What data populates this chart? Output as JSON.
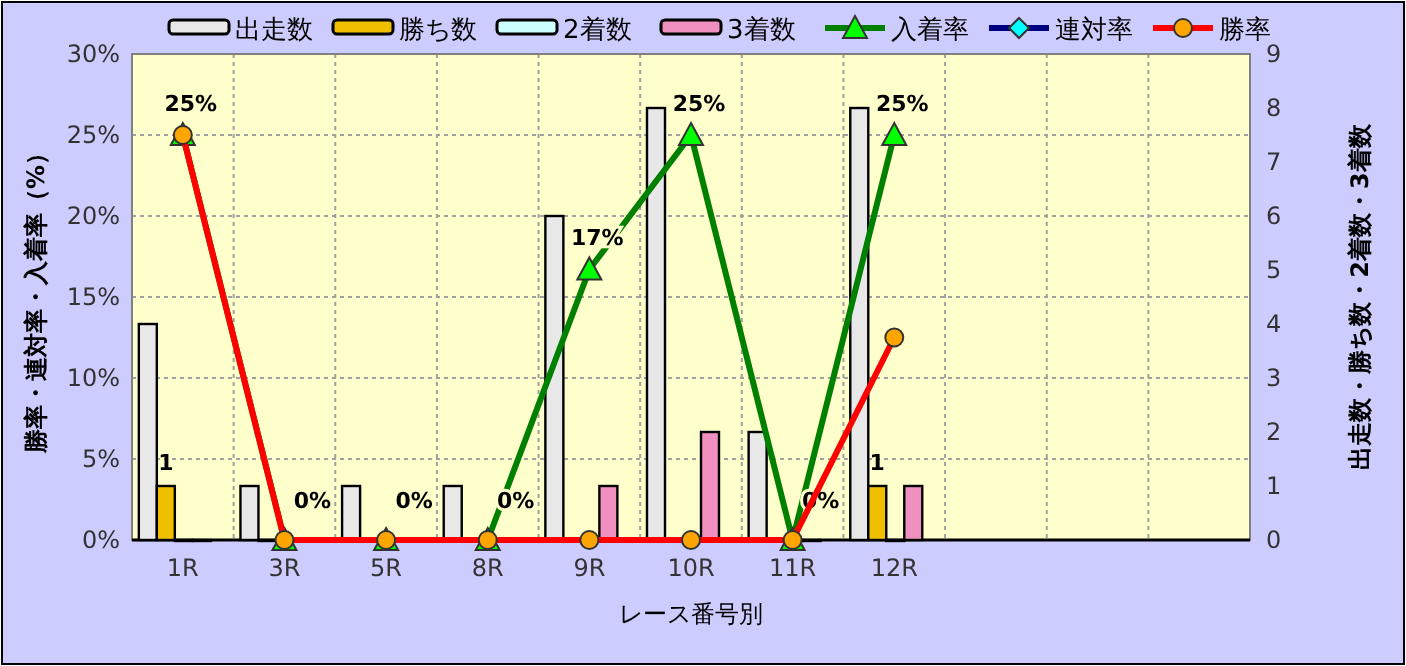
{
  "chart_data": {
    "type": "bar",
    "xlabel": "レース番号別",
    "ylabel": "勝率・連対率・入着率（%）",
    "y2label": "出走数・勝ち数・2着数・3着数",
    "categories": [
      "1R",
      "3R",
      "5R",
      "8R",
      "9R",
      "10R",
      "11R",
      "12R",
      null,
      null,
      null
    ],
    "ylim": [
      0,
      30
    ],
    "yticks": [
      {
        "value": 0,
        "label": "0%"
      },
      {
        "value": 5,
        "label": "5%"
      },
      {
        "value": 10,
        "label": "10%"
      },
      {
        "value": 15,
        "label": "15%"
      },
      {
        "value": 20,
        "label": "20%"
      },
      {
        "value": 25,
        "label": "25%"
      },
      {
        "value": 30,
        "label": "30%"
      }
    ],
    "y2lim": [
      0,
      9
    ],
    "y2ticks": [
      0,
      1,
      2,
      3,
      4,
      5,
      6,
      7,
      8,
      9
    ],
    "grid": true,
    "legend": "top",
    "series": [
      {
        "name": "出走数",
        "axis": "y2",
        "color": "#e8e8e8",
        "values": [
          4,
          1,
          1,
          1,
          6,
          8,
          2,
          8,
          null,
          null,
          null
        ]
      },
      {
        "name": "勝ち数",
        "axis": "y2",
        "color": "#f0c000",
        "values": [
          1,
          0,
          0,
          0,
          0,
          0,
          0,
          1,
          null,
          null,
          null
        ],
        "value_labels": [
          "1",
          null,
          null,
          null,
          null,
          null,
          null,
          "1",
          null,
          null,
          null
        ]
      },
      {
        "name": "2着数",
        "axis": "y2",
        "color": "#ccffff",
        "values": [
          0,
          0,
          0,
          0,
          0,
          0,
          0,
          0,
          null,
          null,
          null
        ]
      },
      {
        "name": "3着数",
        "axis": "y2",
        "color": "#f090c0",
        "values": [
          0,
          0,
          0,
          0,
          1,
          2,
          0,
          1,
          null,
          null,
          null
        ]
      },
      {
        "name": "入着率",
        "type": "line",
        "color": "#008000",
        "marker": "triangle",
        "colors": [
          "#00ff00",
          "#00ff00",
          "#00ff00",
          "#00ff00",
          "#00ff00",
          "#00ff00",
          "#00ff00",
          "#00ff00",
          null,
          null,
          null
        ],
        "values": [
          25,
          0,
          0,
          0,
          16.7,
          25,
          0,
          25,
          null,
          null,
          null
        ],
        "value_labels": [
          "25%",
          "0%",
          "0%",
          "0%",
          "17%",
          "25%",
          "0%",
          "25%",
          null,
          null,
          null
        ]
      },
      {
        "name": "連対率",
        "type": "line",
        "color": "#000080",
        "marker": "diamond",
        "colors": [
          "#00ffff",
          null,
          null,
          null,
          null,
          null,
          null,
          null,
          null,
          null,
          null
        ],
        "values": [
          null,
          null,
          null,
          null,
          null,
          null,
          null,
          null,
          null,
          null,
          null
        ]
      },
      {
        "name": "勝率",
        "type": "line",
        "color": "#ff0000",
        "marker": "circle",
        "colors": [
          "#ffa500",
          "#ffa500",
          "#ffa500",
          "#ffa500",
          "#ffa500",
          "#ffa500",
          "#ffa500",
          "#ffa500",
          null,
          null,
          null
        ],
        "values": [
          25,
          0,
          0,
          0,
          0,
          0,
          0,
          12.5,
          null,
          null,
          null
        ]
      }
    ]
  }
}
